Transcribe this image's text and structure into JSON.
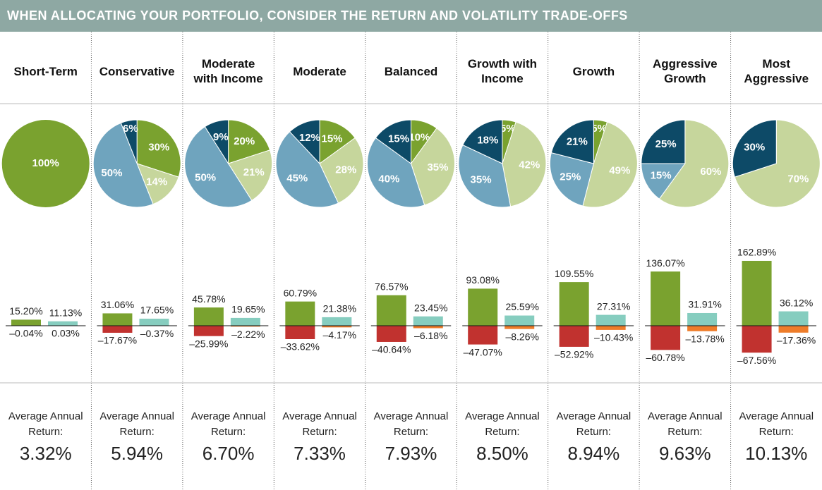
{
  "title": "WHEN ALLOCATING YOUR PORTFOLIO, CONSIDER THE RETURN AND VOLATILITY TRADE-OFFS",
  "return_caption": "Average Annual Return:",
  "colors": {
    "left_high": "#7aa22f",
    "left_low": "#c1322f",
    "right_high": "#86cdbf",
    "right_low": "#ee7d2a"
  },
  "portfolios": [
    {
      "name": "Short-Term",
      "allocation": {
        "values": [
          100
        ],
        "value_labels": [
          "100%"
        ],
        "slice_colors": [
          "#7aa22f"
        ]
      },
      "left": {
        "high": 15.2,
        "high_label": "15.20%",
        "low": -0.04,
        "low_label": "–0.04%"
      },
      "right": {
        "high": 11.13,
        "high_label": "11.13%",
        "low": 0.03,
        "low_label": "0.03%"
      },
      "average_return": "3.32%"
    },
    {
      "name": "Conservative",
      "allocation": {
        "values": [
          30,
          14,
          50,
          6
        ],
        "value_labels": [
          "30%",
          "14%",
          "50%",
          "6%"
        ],
        "slice_colors": [
          "#7aa22f",
          "#c6d69c",
          "#6fa4be",
          "#0d4a67"
        ]
      },
      "left": {
        "high": 31.06,
        "high_label": "31.06%",
        "low": -17.67,
        "low_label": "–17.67%"
      },
      "right": {
        "high": 17.65,
        "high_label": "17.65%",
        "low": -0.37,
        "low_label": "–0.37%"
      },
      "average_return": "5.94%"
    },
    {
      "name": "Moderate with Income",
      "allocation": {
        "values": [
          20,
          21,
          50,
          9
        ],
        "value_labels": [
          "20%",
          "21%",
          "50%",
          "9%"
        ],
        "slice_colors": [
          "#7aa22f",
          "#c6d69c",
          "#6fa4be",
          "#0d4a67"
        ]
      },
      "left": {
        "high": 45.78,
        "high_label": "45.78%",
        "low": -25.99,
        "low_label": "–25.99%"
      },
      "right": {
        "high": 19.65,
        "high_label": "19.65%",
        "low": -2.22,
        "low_label": "–2.22%"
      },
      "average_return": "6.70%"
    },
    {
      "name": "Moderate",
      "allocation": {
        "values": [
          15,
          28,
          45,
          12
        ],
        "value_labels": [
          "15%",
          "28%",
          "45%",
          "12%"
        ],
        "slice_colors": [
          "#7aa22f",
          "#c6d69c",
          "#6fa4be",
          "#0d4a67"
        ]
      },
      "left": {
        "high": 60.79,
        "high_label": "60.79%",
        "low": -33.62,
        "low_label": "–33.62%"
      },
      "right": {
        "high": 21.38,
        "high_label": "21.38%",
        "low": -4.17,
        "low_label": "–4.17%"
      },
      "average_return": "7.33%"
    },
    {
      "name": "Balanced",
      "allocation": {
        "values": [
          10,
          35,
          40,
          15
        ],
        "value_labels": [
          "10%",
          "35%",
          "40%",
          "15%"
        ],
        "slice_colors": [
          "#7aa22f",
          "#c6d69c",
          "#6fa4be",
          "#0d4a67"
        ]
      },
      "left": {
        "high": 76.57,
        "high_label": "76.57%",
        "low": -40.64,
        "low_label": "–40.64%"
      },
      "right": {
        "high": 23.45,
        "high_label": "23.45%",
        "low": -6.18,
        "low_label": "–6.18%"
      },
      "average_return": "7.93%"
    },
    {
      "name": "Growth with Income",
      "allocation": {
        "values": [
          5,
          42,
          35,
          18
        ],
        "value_labels": [
          "5%",
          "42%",
          "35%",
          "18%"
        ],
        "slice_colors": [
          "#7aa22f",
          "#c6d69c",
          "#6fa4be",
          "#0d4a67"
        ]
      },
      "left": {
        "high": 93.08,
        "high_label": "93.08%",
        "low": -47.07,
        "low_label": "–47.07%"
      },
      "right": {
        "high": 25.59,
        "high_label": "25.59%",
        "low": -8.26,
        "low_label": "–8.26%"
      },
      "average_return": "8.50%"
    },
    {
      "name": "Growth",
      "allocation": {
        "values": [
          5,
          49,
          25,
          21
        ],
        "value_labels": [
          "5%",
          "49%",
          "25%",
          "21%"
        ],
        "slice_colors": [
          "#7aa22f",
          "#c6d69c",
          "#6fa4be",
          "#0d4a67"
        ]
      },
      "left": {
        "high": 109.55,
        "high_label": "109.55%",
        "low": -52.92,
        "low_label": "–52.92%"
      },
      "right": {
        "high": 27.31,
        "high_label": "27.31%",
        "low": -10.43,
        "low_label": "–10.43%"
      },
      "average_return": "8.94%"
    },
    {
      "name": "Aggressive Growth",
      "allocation": {
        "values": [
          60,
          15,
          25
        ],
        "value_labels": [
          "60%",
          "15%",
          "25%"
        ],
        "slice_colors": [
          "#c6d69c",
          "#6fa4be",
          "#0d4a67"
        ]
      },
      "left": {
        "high": 136.07,
        "high_label": "136.07%",
        "low": -60.78,
        "low_label": "–60.78%"
      },
      "right": {
        "high": 31.91,
        "high_label": "31.91%",
        "low": -13.78,
        "low_label": "–13.78%"
      },
      "average_return": "9.63%"
    },
    {
      "name": "Most Aggressive",
      "allocation": {
        "values": [
          70,
          30
        ],
        "value_labels": [
          "70%",
          "30%"
        ],
        "slice_colors": [
          "#c6d69c",
          "#0d4a67"
        ]
      },
      "left": {
        "high": 162.89,
        "high_label": "162.89%",
        "low": -67.56,
        "low_label": "–67.56%"
      },
      "right": {
        "high": 36.12,
        "high_label": "36.12%",
        "low": -17.36,
        "low_label": "–17.36%"
      },
      "average_return": "10.13%"
    }
  ]
}
